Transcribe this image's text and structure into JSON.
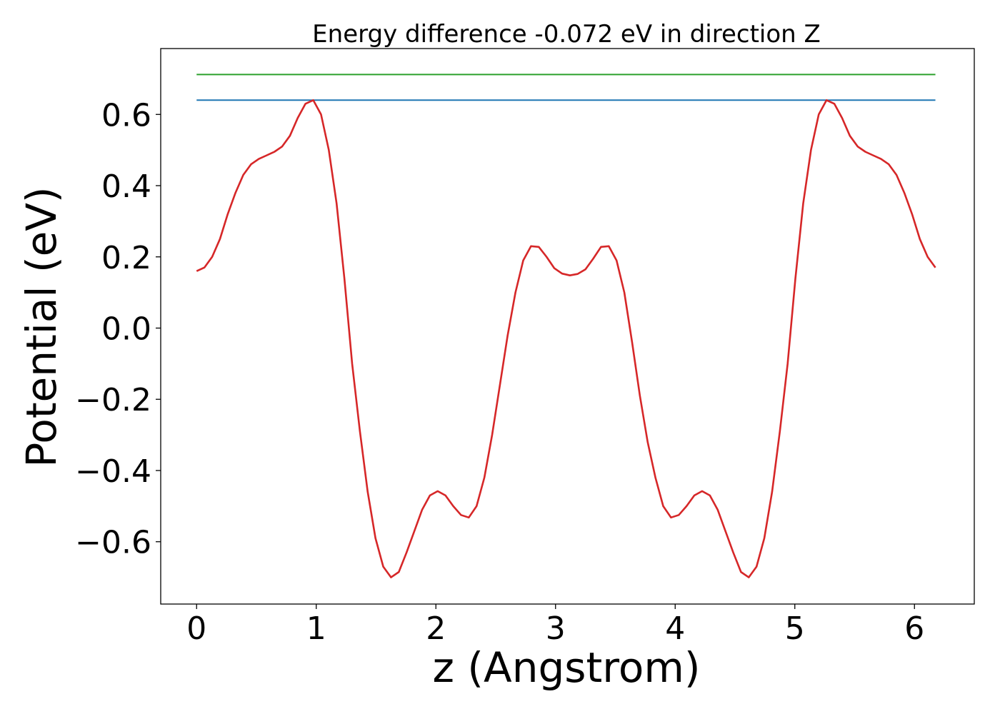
{
  "chart_data": {
    "type": "line",
    "title": "Energy difference -0.072 eV in direction Z",
    "xlabel": "z (Angstrom)",
    "ylabel": "Potential (eV)",
    "xlim": [
      -0.3,
      6.5
    ],
    "ylim": [
      -0.775,
      0.785
    ],
    "xticks": [
      0,
      1,
      2,
      3,
      4,
      5,
      6
    ],
    "xtick_labels": [
      "0",
      "1",
      "2",
      "3",
      "4",
      "5",
      "6"
    ],
    "yticks": [
      -0.6,
      -0.4,
      -0.2,
      0.0,
      0.2,
      0.4,
      0.6
    ],
    "ytick_labels": [
      "−0.6",
      "−0.4",
      "−0.2",
      "0.0",
      "0.2",
      "0.4",
      "0.6"
    ],
    "grid": false,
    "series": [
      {
        "color": "#d62728",
        "x": [
          0.0,
          0.065,
          0.13,
          0.195,
          0.26,
          0.325,
          0.39,
          0.455,
          0.52,
          0.585,
          0.65,
          0.715,
          0.78,
          0.845,
          0.91,
          0.975,
          1.04,
          1.105,
          1.17,
          1.235,
          1.3,
          1.365,
          1.43,
          1.495,
          1.56,
          1.625,
          1.69,
          1.755,
          1.82,
          1.885,
          1.95,
          2.015,
          2.08,
          2.145,
          2.21,
          2.275,
          2.34,
          2.405,
          2.47,
          2.535,
          2.6,
          2.665,
          2.73,
          2.795,
          2.86,
          2.925,
          2.99,
          3.055,
          3.12,
          3.185,
          3.25,
          3.315,
          3.38,
          3.445,
          3.51,
          3.575,
          3.64,
          3.705,
          3.77,
          3.835,
          3.9,
          3.965,
          4.03,
          4.095,
          4.16,
          4.225,
          4.29,
          4.355,
          4.42,
          4.485,
          4.55,
          4.615,
          4.68,
          4.745,
          4.81,
          4.875,
          4.94,
          5.005,
          5.07,
          5.135,
          5.2,
          5.265,
          5.33,
          5.395,
          5.46,
          5.525,
          5.59,
          5.655,
          5.72,
          5.785,
          5.85,
          5.915,
          5.98,
          6.045,
          6.11,
          6.175
        ],
        "values": [
          0.16,
          0.17,
          0.2,
          0.25,
          0.32,
          0.38,
          0.43,
          0.46,
          0.475,
          0.485,
          0.495,
          0.51,
          0.54,
          0.59,
          0.63,
          0.64,
          0.6,
          0.5,
          0.35,
          0.14,
          -0.1,
          -0.29,
          -0.46,
          -0.59,
          -0.67,
          -0.7,
          -0.685,
          -0.63,
          -0.57,
          -0.51,
          -0.47,
          -0.458,
          -0.47,
          -0.5,
          -0.525,
          -0.532,
          -0.5,
          -0.42,
          -0.3,
          -0.16,
          -0.02,
          0.1,
          0.19,
          0.23,
          0.228,
          0.2,
          0.168,
          0.153,
          0.148,
          0.152,
          0.165,
          0.195,
          0.228,
          0.23,
          0.19,
          0.1,
          -0.04,
          -0.19,
          -0.32,
          -0.42,
          -0.5,
          -0.532,
          -0.525,
          -0.5,
          -0.47,
          -0.458,
          -0.47,
          -0.51,
          -0.57,
          -0.63,
          -0.685,
          -0.7,
          -0.67,
          -0.59,
          -0.46,
          -0.29,
          -0.1,
          0.14,
          0.35,
          0.5,
          0.6,
          0.64,
          0.63,
          0.59,
          0.54,
          0.51,
          0.495,
          0.485,
          0.475,
          0.46,
          0.43,
          0.38,
          0.32,
          0.25,
          0.2,
          0.17
        ]
      },
      {
        "color": "#1f77b4",
        "x": [
          0.0,
          6.175
        ],
        "values": [
          0.64,
          0.64
        ]
      },
      {
        "color": "#2ca02c",
        "x": [
          0.0,
          6.175
        ],
        "values": [
          0.712,
          0.712
        ]
      }
    ]
  }
}
